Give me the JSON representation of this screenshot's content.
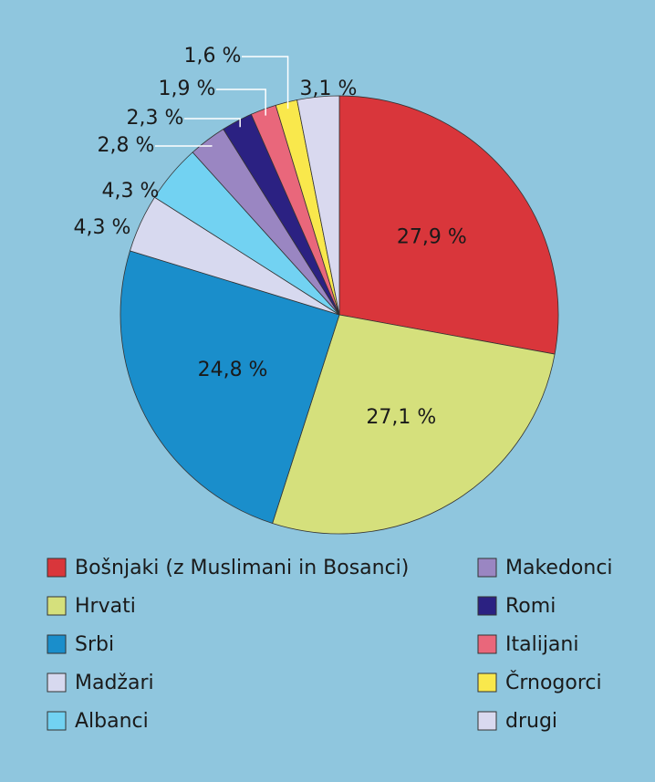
{
  "chart_data": {
    "type": "pie",
    "categories": [
      "Bošnjaki (z Muslimani in Bosanci)",
      "Hrvati",
      "Srbi",
      "Madžari",
      "Albanci",
      "Makedonci",
      "Romi",
      "Italijani",
      "Črnogorci",
      "drugi"
    ],
    "values": [
      27.9,
      27.1,
      24.8,
      4.3,
      4.3,
      2.8,
      2.3,
      1.9,
      1.6,
      3.1
    ],
    "value_labels": [
      "27,9 %",
      "27,1 %",
      "24,8 %",
      "4,3 %",
      "4,3 %",
      "2,8 %",
      "2,3 %",
      "1,9 %",
      "1,6 %",
      "3,1 %"
    ],
    "colors": [
      "#d9363b",
      "#d5e07c",
      "#1a8ecb",
      "#d7d9ef",
      "#72d2f2",
      "#9a86c2",
      "#2b2182",
      "#e9677b",
      "#f9e84c",
      "#d9d9ef"
    ]
  }
}
